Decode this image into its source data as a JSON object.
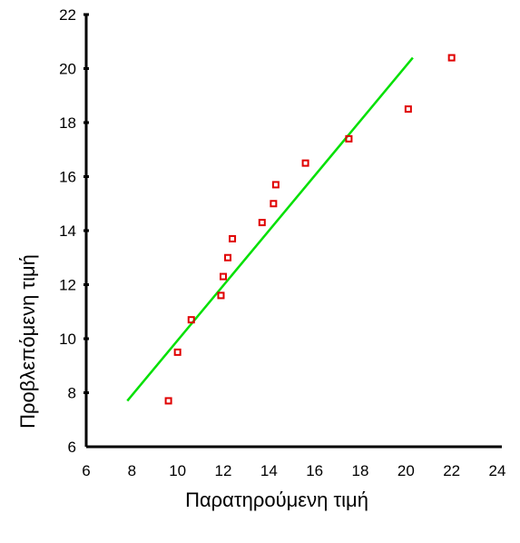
{
  "chart_data": {
    "type": "scatter",
    "xlabel": "Παρατηρούμενη τιμή",
    "ylabel": "Προβλεπόμενη τιμή",
    "xlim": [
      6,
      24
    ],
    "ylim": [
      6,
      22
    ],
    "xticks": [
      6,
      8,
      10,
      12,
      14,
      16,
      18,
      20,
      22,
      24
    ],
    "yticks": [
      6,
      8,
      10,
      12,
      14,
      16,
      18,
      20,
      22
    ],
    "grid": false,
    "series": [
      {
        "type": "scatter",
        "color": "#e00000",
        "marker": "square-open",
        "points": [
          {
            "x": 9.6,
            "y": 7.7
          },
          {
            "x": 10.0,
            "y": 9.5
          },
          {
            "x": 10.6,
            "y": 10.7
          },
          {
            "x": 11.9,
            "y": 11.6
          },
          {
            "x": 12.0,
            "y": 12.3
          },
          {
            "x": 12.2,
            "y": 13.0
          },
          {
            "x": 12.4,
            "y": 13.7
          },
          {
            "x": 13.7,
            "y": 14.3
          },
          {
            "x": 14.2,
            "y": 15.0
          },
          {
            "x": 14.3,
            "y": 15.7
          },
          {
            "x": 15.6,
            "y": 16.5
          },
          {
            "x": 17.5,
            "y": 17.4
          },
          {
            "x": 20.1,
            "y": 18.5
          },
          {
            "x": 22.0,
            "y": 20.4
          }
        ]
      },
      {
        "type": "line",
        "color": "#00e000",
        "points": [
          {
            "x": 7.8,
            "y": 7.7
          },
          {
            "x": 20.3,
            "y": 20.4
          }
        ]
      }
    ]
  }
}
